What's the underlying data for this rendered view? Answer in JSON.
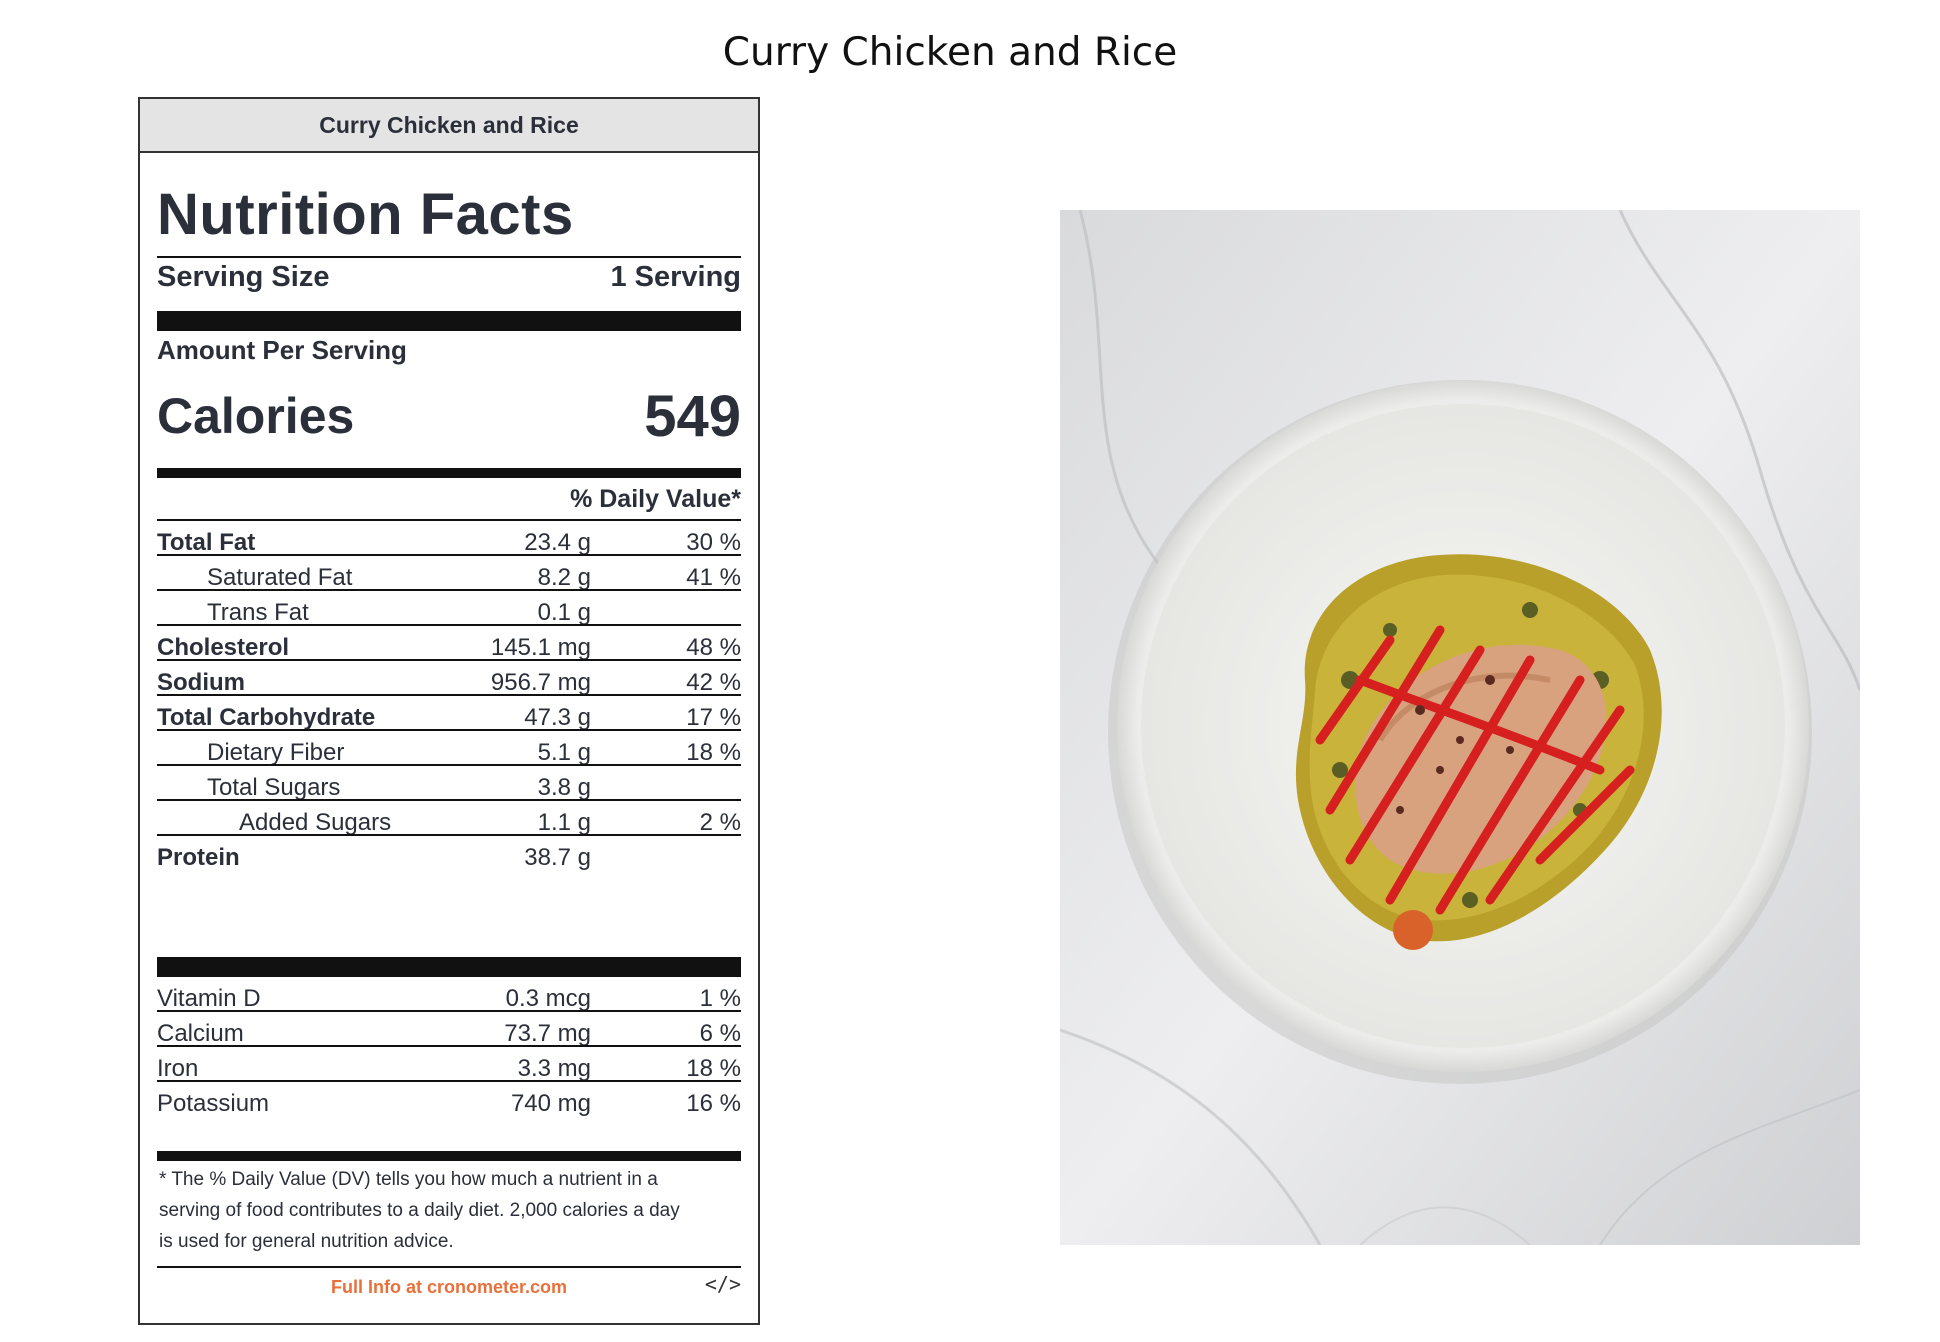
{
  "page_title": "Curry Chicken and Rice",
  "label": {
    "header": "Curry Chicken and Rice",
    "title": "Nutrition Facts",
    "serving_size_label": "Serving Size",
    "serving_size_value": "1 Serving",
    "amount_per_serving": "Amount Per Serving",
    "calories_label": "Calories",
    "calories_value": "549",
    "daily_value_header": "% Daily Value*",
    "nutrients": [
      {
        "name": "Total Fat",
        "amount": "23.4 g",
        "dv": "30 %"
      },
      {
        "name": "Saturated Fat",
        "amount": "8.2 g",
        "dv": "41 %"
      },
      {
        "name": "Trans Fat",
        "amount": "0.1 g",
        "dv": ""
      },
      {
        "name": "Cholesterol",
        "amount": "145.1 mg",
        "dv": "48 %"
      },
      {
        "name": "Sodium",
        "amount": "956.7 mg",
        "dv": "42 %"
      },
      {
        "name": "Total Carbohydrate",
        "amount": "47.3 g",
        "dv": "17 %"
      },
      {
        "name": "Dietary Fiber",
        "amount": "5.1 g",
        "dv": "18 %"
      },
      {
        "name": "Total Sugars",
        "amount": "3.8 g",
        "dv": ""
      },
      {
        "name": "Added Sugars",
        "amount": "1.1 g",
        "dv": "2 %"
      },
      {
        "name": "Protein",
        "amount": "38.7 g",
        "dv": ""
      }
    ],
    "vitamins": [
      {
        "name": "Vitamin D",
        "amount": "0.3 mcg",
        "dv": "1 %"
      },
      {
        "name": "Calcium",
        "amount": "73.7 mg",
        "dv": "6 %"
      },
      {
        "name": "Iron",
        "amount": "3.3 mg",
        "dv": "18 %"
      },
      {
        "name": "Potassium",
        "amount": "740 mg",
        "dv": "16 %"
      }
    ],
    "footnote_lines": [
      "* The % Daily Value (DV) tells you how much a nutrient in a",
      "serving of food contributes to a daily diet. 2,000 calories a day",
      "is used for general nutrition advice."
    ],
    "footer_link": "Full Info at cronometer.com",
    "embed_icon": "</>",
    "footer_color": "#e8703a"
  },
  "photo": {
    "icon": "food-photo-curry-chicken-bowl"
  }
}
